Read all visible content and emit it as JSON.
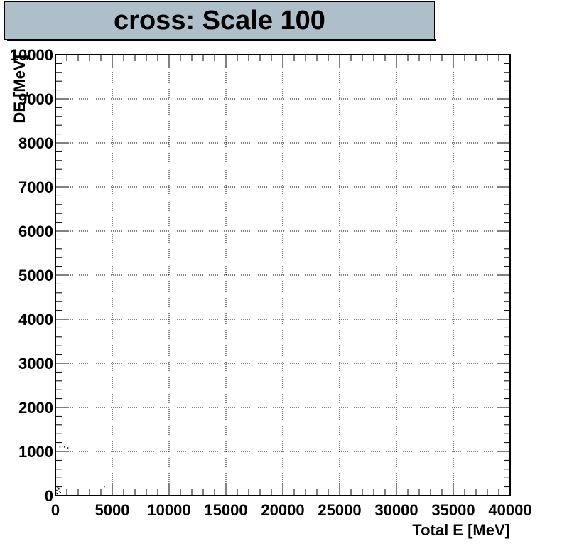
{
  "chart_data": {
    "type": "scatter",
    "title": "cross: Scale 100",
    "xlabel": "Total E [MeV]",
    "ylabel": "DE [MeV]",
    "xlim": [
      0,
      40000
    ],
    "ylim": [
      0,
      10000
    ],
    "x_ticks": [
      "0",
      "5000",
      "10000",
      "15000",
      "20000",
      "25000",
      "30000",
      "35000",
      "40000"
    ],
    "y_ticks": [
      "0",
      "1000",
      "2000",
      "3000",
      "4000",
      "5000",
      "6000",
      "7000",
      "8000",
      "9000",
      "10000"
    ],
    "grid": true,
    "points": [
      {
        "x": 50,
        "y": 60
      },
      {
        "x": 120,
        "y": 120
      },
      {
        "x": 200,
        "y": 180
      },
      {
        "x": 300,
        "y": 150
      },
      {
        "x": 380,
        "y": 90
      },
      {
        "x": 150,
        "y": 40
      },
      {
        "x": 450,
        "y": 70
      },
      {
        "x": 250,
        "y": 200
      },
      {
        "x": 400,
        "y": 1100
      },
      {
        "x": 800,
        "y": 1100
      },
      {
        "x": 1100,
        "y": 1080
      },
      {
        "x": 4300,
        "y": 200
      }
    ]
  }
}
